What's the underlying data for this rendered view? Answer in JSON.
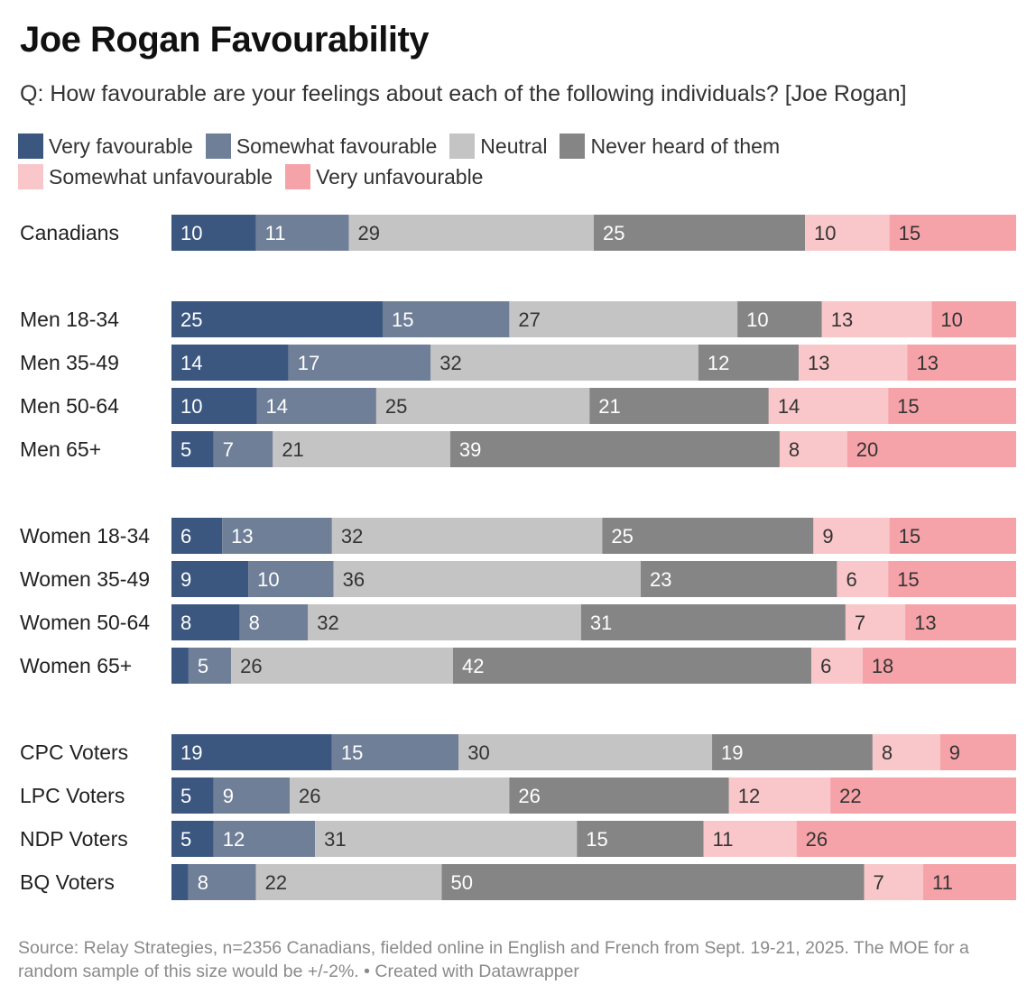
{
  "title": "Joe Rogan Favourability",
  "subtitle": "Q: How favourable are your feelings about each of the following individuals? [Joe Rogan]",
  "footer": "Source: Relay Strategies, n=2356 Canadians, fielded online in English and French from Sept. 19-21, 2025. The MOE for a random sample of this size would be +/-2%. • Created with Datawrapper",
  "chart_data": {
    "type": "bar",
    "orientation": "horizontal",
    "stacked": true,
    "xlim": [
      0,
      100
    ],
    "legend_position": "top",
    "series": [
      {
        "name": "Very favourable",
        "color": "#3b5780"
      },
      {
        "name": "Somewhat favourable",
        "color": "#6f7f98"
      },
      {
        "name": "Neutral",
        "color": "#c4c4c4"
      },
      {
        "name": "Never heard of them",
        "color": "#858585"
      },
      {
        "name": "Somewhat unfavourable",
        "color": "#f9c7c9"
      },
      {
        "name": "Very unfavourable",
        "color": "#f5a3a9"
      }
    ],
    "groups": [
      [
        {
          "label": "Canadians",
          "values": [
            10,
            11,
            29,
            25,
            10,
            15
          ]
        }
      ],
      [
        {
          "label": "Men 18-34",
          "values": [
            25,
            15,
            27,
            10,
            13,
            10
          ]
        },
        {
          "label": "Men 35-49",
          "values": [
            14,
            17,
            32,
            12,
            13,
            13
          ]
        },
        {
          "label": "Men 50-64",
          "values": [
            10,
            14,
            25,
            21,
            14,
            15
          ]
        },
        {
          "label": "Men 65+",
          "values": [
            5,
            7,
            21,
            39,
            8,
            20
          ]
        }
      ],
      [
        {
          "label": "Women 18-34",
          "values": [
            6,
            13,
            32,
            25,
            9,
            15
          ]
        },
        {
          "label": "Women 35-49",
          "values": [
            9,
            10,
            36,
            23,
            6,
            15
          ]
        },
        {
          "label": "Women 50-64",
          "values": [
            8,
            8,
            32,
            31,
            7,
            13
          ]
        },
        {
          "label": "Women 65+",
          "values": [
            2,
            5,
            26,
            42,
            6,
            18
          ]
        }
      ],
      [
        {
          "label": "CPC Voters",
          "values": [
            19,
            15,
            30,
            19,
            8,
            9
          ]
        },
        {
          "label": "LPC Voters",
          "values": [
            5,
            9,
            26,
            26,
            12,
            22
          ]
        },
        {
          "label": "NDP Voters",
          "values": [
            5,
            12,
            31,
            15,
            11,
            26
          ]
        },
        {
          "label": "BQ Voters",
          "values": [
            2,
            8,
            22,
            50,
            7,
            11
          ]
        }
      ]
    ],
    "label_min_value": 3
  }
}
